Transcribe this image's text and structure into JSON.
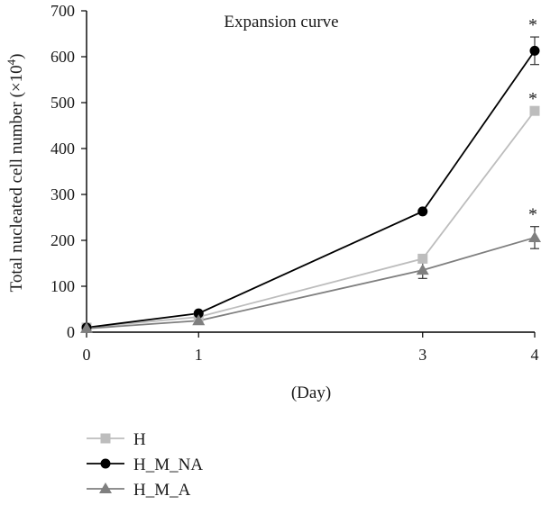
{
  "chart_data": {
    "type": "line",
    "title": "Expansion curve",
    "xlabel": "(Day)",
    "ylabel": "Total nucleated cell number (×10",
    "ylabel_sup": "4",
    "ylabel_close": ")",
    "x": [
      0,
      1,
      3,
      4
    ],
    "x_tick_labels": [
      "0",
      "1",
      "3",
      "4"
    ],
    "ylim": [
      0,
      700
    ],
    "y_ticks": [
      0,
      100,
      200,
      300,
      400,
      500,
      600,
      700
    ],
    "y_tick_labels": [
      "0",
      "100",
      "200",
      "300",
      "400",
      "500",
      "600",
      "700"
    ],
    "grid": false,
    "legend_position": "bottom-left",
    "series": [
      {
        "name": "H",
        "values": [
          10,
          33,
          160,
          482
        ],
        "errors": [
          0,
          0,
          0,
          0
        ],
        "marker": "square",
        "color": "#bdbdbd",
        "significance": [
          "",
          "",
          "",
          "*"
        ]
      },
      {
        "name": "H_M_NA",
        "values": [
          10,
          41,
          263,
          613
        ],
        "errors": [
          0,
          0,
          0,
          30
        ],
        "marker": "circle",
        "color": "#000000",
        "significance": [
          "",
          "",
          "",
          "*"
        ]
      },
      {
        "name": "H_M_A",
        "values": [
          8,
          25,
          135,
          206
        ],
        "errors": [
          0,
          0,
          18,
          24
        ],
        "marker": "triangle",
        "color": "#7f7f7f",
        "significance": [
          "",
          "",
          "",
          "*"
        ]
      }
    ]
  }
}
